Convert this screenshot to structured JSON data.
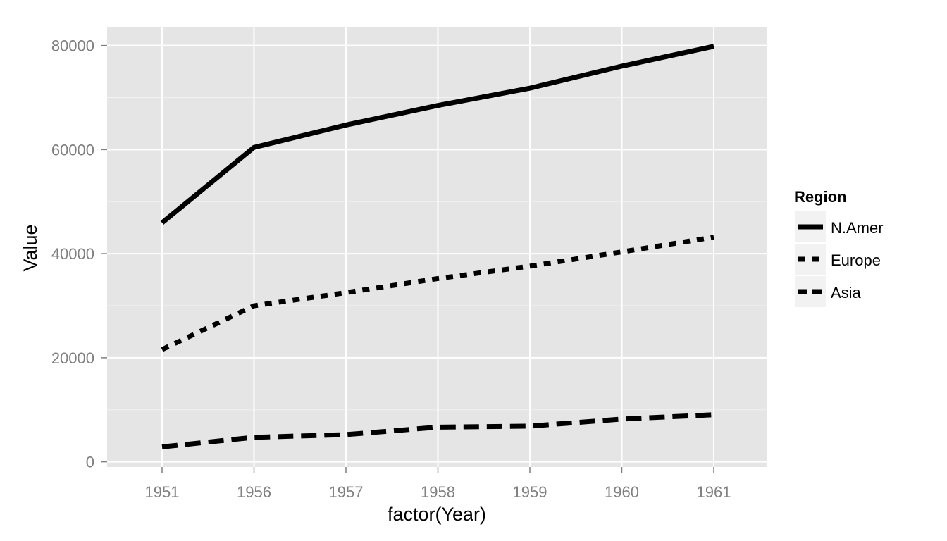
{
  "chart_data": {
    "type": "line",
    "title": "",
    "xlabel": "factor(Year)",
    "ylabel": "Value",
    "categories": [
      "1951",
      "1956",
      "1957",
      "1958",
      "1959",
      "1960",
      "1961"
    ],
    "y_ticks": [
      "0",
      "20000",
      "40000",
      "60000",
      "80000"
    ],
    "y_tick_values": [
      0,
      20000,
      40000,
      60000,
      80000
    ],
    "ylim": [
      -1000,
      83600
    ],
    "grid": true,
    "legend": {
      "title": "Region",
      "position": "right"
    },
    "series": [
      {
        "name": "N.Amer",
        "linetype": "solid",
        "values": [
          45939,
          60423,
          64721,
          68484,
          71799,
          76036,
          79831
        ]
      },
      {
        "name": "Europe",
        "linetype": "dotted",
        "values": [
          21574,
          29990,
          32510,
          35218,
          37598,
          40341,
          43173
        ]
      },
      {
        "name": "Asia",
        "linetype": "dashed",
        "values": [
          2876,
          4708,
          5230,
          6662,
          6856,
          8220,
          9053
        ]
      }
    ],
    "colors": {
      "panel_background": "#e5e5e5",
      "grid_major": "#ffffff",
      "grid_minor": "#f2f2f2",
      "line": "#000000",
      "tick_text": "#7f7f7f",
      "legend_key_background": "#f2f2f2"
    }
  }
}
